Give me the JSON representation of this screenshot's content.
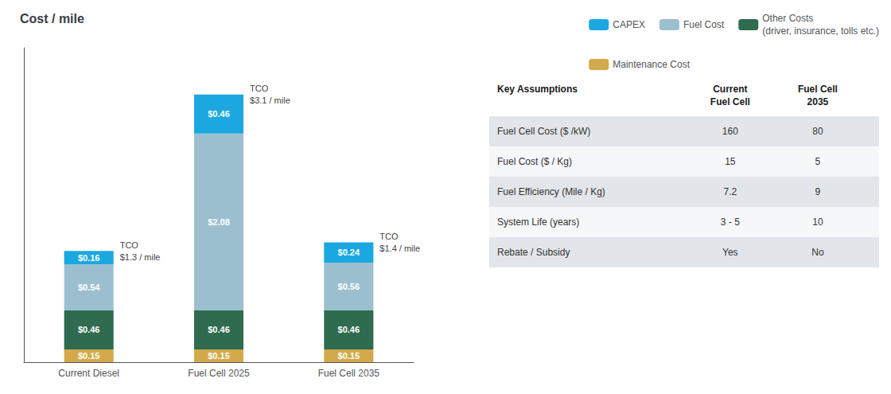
{
  "chart_data": {
    "type": "bar",
    "stacked": true,
    "title": "Cost / mile",
    "categories": [
      "Current Diesel",
      "Fuel Cell 2025",
      "Fuel Cell 2035"
    ],
    "series": [
      {
        "name": "Maintenance Cost",
        "color": "#d4a94c",
        "values": [
          0.15,
          0.15,
          0.15
        ],
        "value_labels": [
          "$0.15",
          "$0.15",
          "$0.15"
        ]
      },
      {
        "name": "Other Costs\n(driver, insurance, tolls etc.)",
        "color": "#2e6b4f",
        "values": [
          0.46,
          0.46,
          0.46
        ],
        "value_labels": [
          "$0.46",
          "$0.46",
          "$0.46"
        ]
      },
      {
        "name": "Fuel Cost",
        "color": "#9bbfcf",
        "values": [
          0.54,
          2.08,
          0.56
        ],
        "value_labels": [
          "$0.54",
          "$2.08",
          "$0.56"
        ]
      },
      {
        "name": "CAPEX",
        "color": "#1ba8e0",
        "values": [
          0.16,
          0.46,
          0.24
        ],
        "value_labels": [
          "$0.16",
          "$0.46",
          "$0.24"
        ]
      }
    ],
    "annotations": [
      "TCO\n$1.3 / mile",
      "TCO\n$3.1 / mile",
      "TCO\n$1.4 / mile"
    ],
    "ylim": [
      0,
      3.7
    ],
    "yticks": [],
    "tick_labels": "x",
    "grid": false,
    "data_labels": true,
    "legend": "top right",
    "table": {
      "header": [
        "Key Assumptions",
        "Current\nFuel Cell",
        "Fuel Cell\n2035"
      ],
      "rows": [
        [
          "Fuel Cell Cost ($ /kW)",
          "160",
          "80"
        ],
        [
          "Fuel Cost ($ / Kg)",
          "15",
          "5"
        ],
        [
          "Fuel Efficiency (Mile / Kg)",
          "7.2",
          "9"
        ],
        [
          "System Life (years)",
          "3 - 5",
          "10"
        ],
        [
          "Rebate / Subsidy",
          "Yes",
          "No"
        ]
      ]
    }
  }
}
